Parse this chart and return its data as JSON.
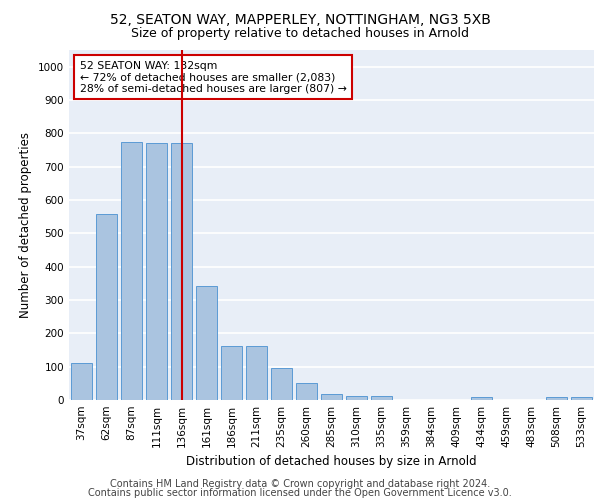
{
  "title1": "52, SEATON WAY, MAPPERLEY, NOTTINGHAM, NG3 5XB",
  "title2": "Size of property relative to detached houses in Arnold",
  "xlabel": "Distribution of detached houses by size in Arnold",
  "ylabel": "Number of detached properties",
  "bar_labels": [
    "37sqm",
    "62sqm",
    "87sqm",
    "111sqm",
    "136sqm",
    "161sqm",
    "186sqm",
    "211sqm",
    "235sqm",
    "260sqm",
    "285sqm",
    "310sqm",
    "335sqm",
    "359sqm",
    "384sqm",
    "409sqm",
    "434sqm",
    "459sqm",
    "483sqm",
    "508sqm",
    "533sqm"
  ],
  "bar_values": [
    112,
    557,
    775,
    770,
    770,
    342,
    163,
    163,
    97,
    52,
    18,
    13,
    12,
    0,
    0,
    0,
    9,
    0,
    0,
    9,
    9
  ],
  "bar_color": "#aac4e0",
  "bar_edge_color": "#5b9bd5",
  "vline_x": 4,
  "vline_color": "#cc0000",
  "annotation_text": "52 SEATON WAY: 132sqm\n← 72% of detached houses are smaller (2,083)\n28% of semi-detached houses are larger (807) →",
  "annotation_box_color": "#ffffff",
  "annotation_box_edge": "#cc0000",
  "ylim": [
    0,
    1050
  ],
  "yticks": [
    0,
    100,
    200,
    300,
    400,
    500,
    600,
    700,
    800,
    900,
    1000
  ],
  "footer1": "Contains HM Land Registry data © Crown copyright and database right 2024.",
  "footer2": "Contains public sector information licensed under the Open Government Licence v3.0.",
  "background_color": "#e8eef7",
  "grid_color": "#ffffff",
  "title1_fontsize": 10,
  "title2_fontsize": 9,
  "axis_fontsize": 8.5,
  "tick_fontsize": 7.5,
  "footer_fontsize": 7
}
